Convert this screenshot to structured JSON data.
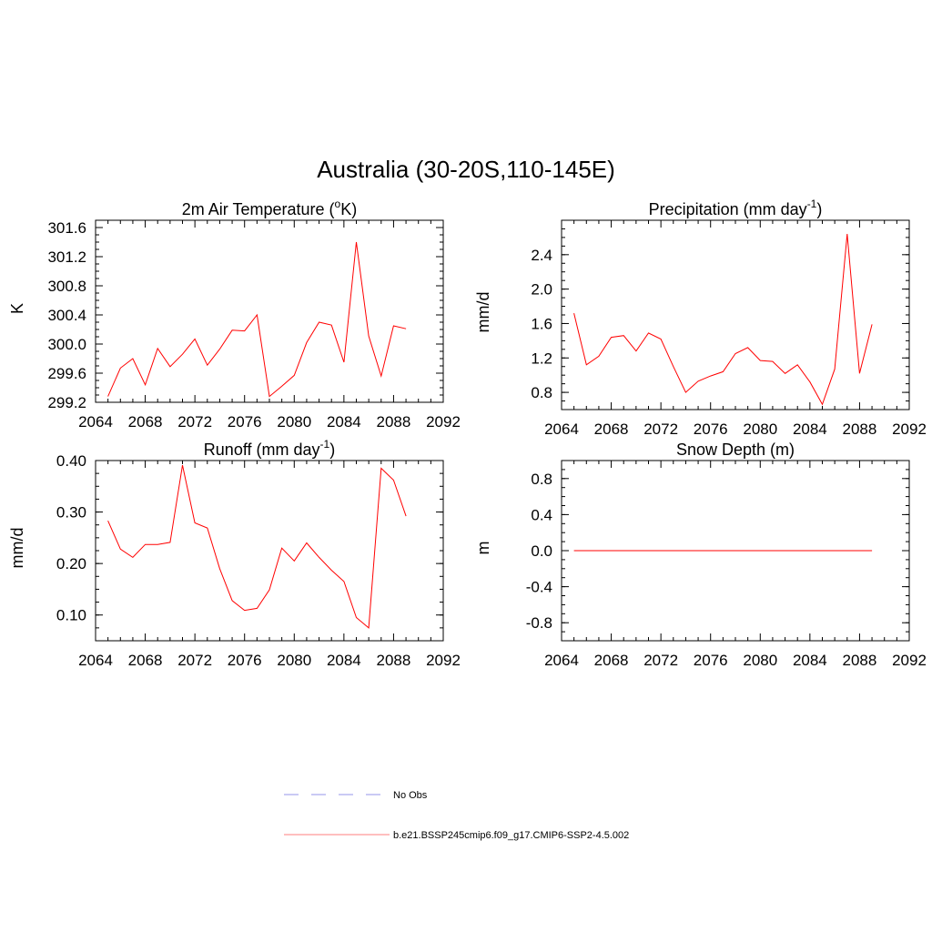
{
  "figure": {
    "title": "Australia (30-20S,110-145E)"
  },
  "colors": {
    "model": "#ff0000",
    "obs": "#aaaaee",
    "legend_model": "#ff9999",
    "axis": "#000000"
  },
  "legend": {
    "placement": "bottom-center",
    "entries": [
      {
        "label": "No Obs",
        "style": "dashed",
        "color": "#aaaaee"
      },
      {
        "label": "b.e21.BSSP245cmip6.f09_g17.CMIP6-SSP2-4.5.002",
        "style": "solid",
        "color": "#ff9999"
      }
    ]
  },
  "chart_data": [
    {
      "type": "line",
      "title": "2m Air Temperature (",
      "title_sup": "o",
      "title_after": "K)",
      "ylabel": "K",
      "xlim": [
        2064,
        2092
      ],
      "xticks": [
        2064,
        2068,
        2072,
        2076,
        2080,
        2084,
        2088,
        2092
      ],
      "ylim": [
        299.2,
        301.7
      ],
      "yticks": [
        299.2,
        299.6,
        300.0,
        300.4,
        300.8,
        301.2,
        301.6
      ],
      "ytick_labels": [
        "299.2",
        "299.6",
        "300.0",
        "300.4",
        "300.8",
        "301.2",
        "301.6"
      ],
      "series": [
        {
          "x": [
            2065,
            2066,
            2067,
            2068,
            2069,
            2070,
            2071,
            2072,
            2073,
            2074,
            2075,
            2076,
            2077,
            2078,
            2079,
            2080,
            2081,
            2082,
            2083,
            2084,
            2085,
            2086,
            2087,
            2088,
            2089
          ],
          "values": [
            299.28,
            299.67,
            299.8,
            299.44,
            299.94,
            299.69,
            299.86,
            300.07,
            299.71,
            299.93,
            300.19,
            300.18,
            300.4,
            299.28,
            299.42,
            299.57,
            300.02,
            300.3,
            300.26,
            299.75,
            301.4,
            300.11,
            299.56,
            300.25,
            300.21
          ]
        }
      ]
    },
    {
      "type": "line",
      "title": "Precipitation (mm day",
      "title_sup": "-1",
      "title_after": ")",
      "ylabel": "mm/d",
      "xlim": [
        2064,
        2092
      ],
      "xticks": [
        2064,
        2068,
        2072,
        2076,
        2080,
        2084,
        2088,
        2092
      ],
      "ylim": [
        0.6,
        2.8
      ],
      "yticks": [
        0.8,
        1.2,
        1.6,
        2.0,
        2.4
      ],
      "ytick_labels": [
        "0.8",
        "1.2",
        "1.6",
        "2.0",
        "2.4"
      ],
      "series": [
        {
          "x": [
            2065,
            2066,
            2067,
            2068,
            2069,
            2070,
            2071,
            2072,
            2073,
            2074,
            2075,
            2076,
            2077,
            2078,
            2079,
            2080,
            2081,
            2082,
            2083,
            2084,
            2085,
            2086,
            2087,
            2088,
            2089
          ],
          "values": [
            1.72,
            1.12,
            1.22,
            1.44,
            1.46,
            1.28,
            1.49,
            1.42,
            1.1,
            0.8,
            0.93,
            0.99,
            1.04,
            1.25,
            1.32,
            1.17,
            1.16,
            1.02,
            1.12,
            0.92,
            0.66,
            1.07,
            2.64,
            1.02,
            1.59
          ]
        }
      ]
    },
    {
      "type": "line",
      "title": "Runoff (mm day",
      "title_sup": "-1",
      "title_after": ")",
      "ylabel": "mm/d",
      "xlim": [
        2064,
        2092
      ],
      "xticks": [
        2064,
        2068,
        2072,
        2076,
        2080,
        2084,
        2088,
        2092
      ],
      "ylim": [
        0.05,
        0.4
      ],
      "yticks": [
        0.1,
        0.2,
        0.3,
        0.4
      ],
      "ytick_labels": [
        "0.10",
        "0.20",
        "0.30",
        "0.40"
      ],
      "series": [
        {
          "x": [
            2065,
            2066,
            2067,
            2068,
            2069,
            2070,
            2071,
            2072,
            2073,
            2074,
            2075,
            2076,
            2077,
            2078,
            2079,
            2080,
            2081,
            2082,
            2083,
            2084,
            2085,
            2086,
            2087,
            2088,
            2089
          ],
          "values": [
            0.283,
            0.228,
            0.212,
            0.237,
            0.237,
            0.241,
            0.391,
            0.279,
            0.269,
            0.19,
            0.128,
            0.109,
            0.113,
            0.149,
            0.23,
            0.205,
            0.24,
            0.212,
            0.187,
            0.165,
            0.095,
            0.075,
            0.385,
            0.362,
            0.292
          ]
        }
      ]
    },
    {
      "type": "line",
      "title": "Snow Depth (m)",
      "title_sup": "",
      "title_after": "",
      "ylabel": "m",
      "xlim": [
        2064,
        2092
      ],
      "xticks": [
        2064,
        2068,
        2072,
        2076,
        2080,
        2084,
        2088,
        2092
      ],
      "ylim": [
        -1.0,
        1.0
      ],
      "yticks": [
        -0.8,
        -0.4,
        0.0,
        0.4,
        0.8
      ],
      "ytick_labels": [
        "-0.8",
        "-0.4",
        "0.0",
        "0.4",
        "0.8"
      ],
      "series": [
        {
          "x": [
            2065,
            2066,
            2067,
            2068,
            2069,
            2070,
            2071,
            2072,
            2073,
            2074,
            2075,
            2076,
            2077,
            2078,
            2079,
            2080,
            2081,
            2082,
            2083,
            2084,
            2085,
            2086,
            2087,
            2088,
            2089
          ],
          "values": [
            0,
            0,
            0,
            0,
            0,
            0,
            0,
            0,
            0,
            0,
            0,
            0,
            0,
            0,
            0,
            0,
            0,
            0,
            0,
            0,
            0,
            0,
            0,
            0,
            0
          ]
        }
      ]
    }
  ]
}
